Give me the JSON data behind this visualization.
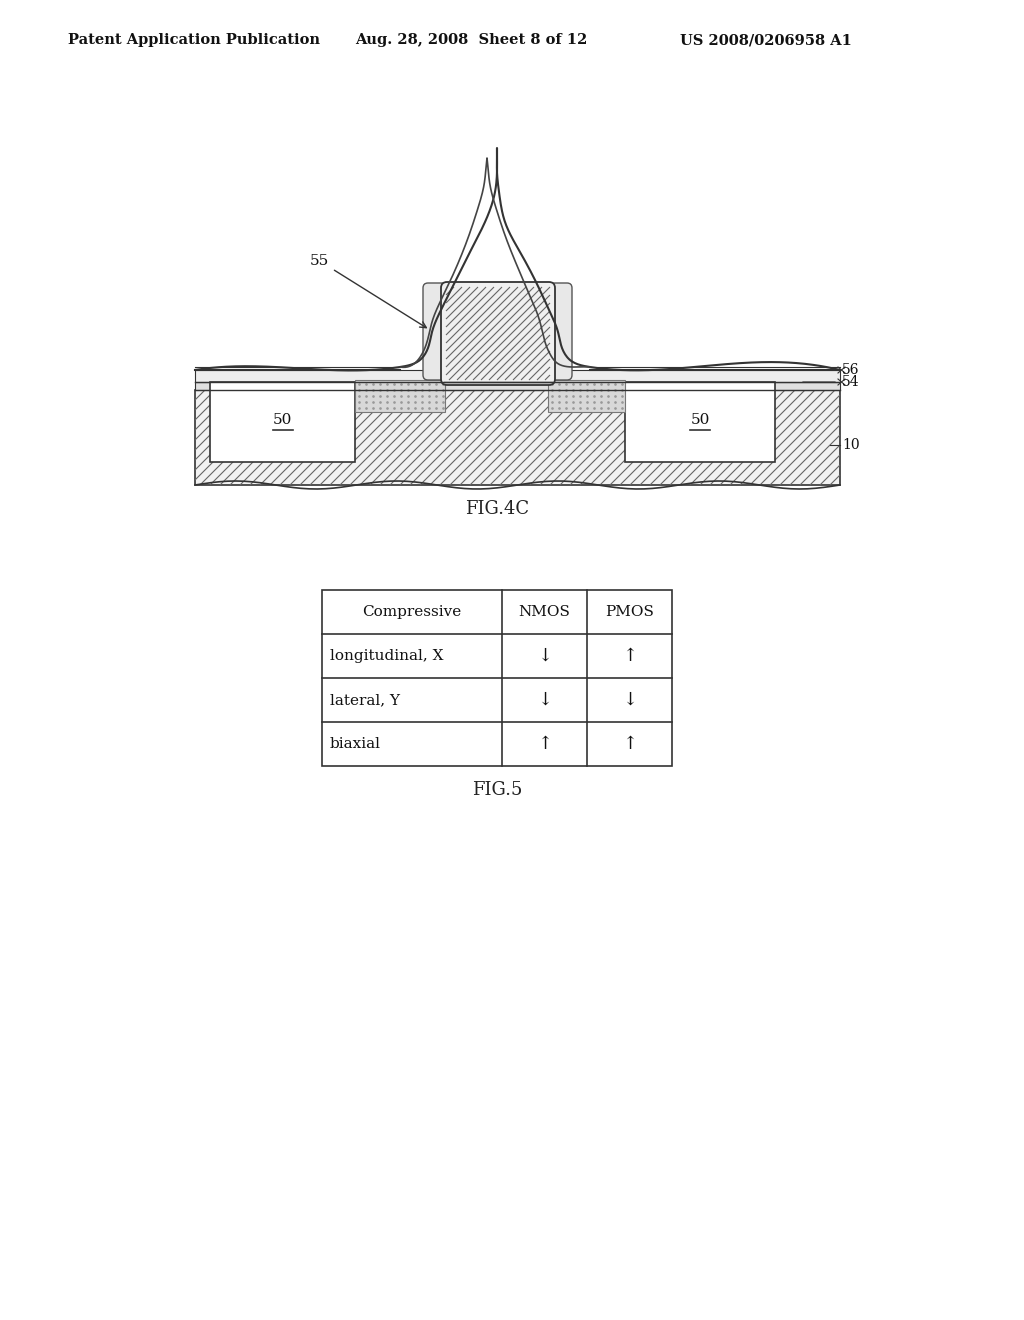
{
  "bg_color": "#ffffff",
  "header_left": "Patent Application Publication",
  "header_mid": "Aug. 28, 2008  Sheet 8 of 12",
  "header_right": "US 2008/0206958 A1",
  "fig4c_label": "FIG.4C",
  "fig5_label": "FIG.5",
  "table_headers": [
    "Compressive",
    "NMOS",
    "PMOS"
  ],
  "table_rows": [
    [
      "longitudinal, X",
      "↓",
      "↑"
    ],
    [
      "lateral, Y",
      "↓",
      "↓"
    ],
    [
      "biaxial",
      "↑",
      "↑"
    ]
  ],
  "line_color": "#333333",
  "hatch_color": "#666666",
  "dot_color": "#aaaaaa"
}
